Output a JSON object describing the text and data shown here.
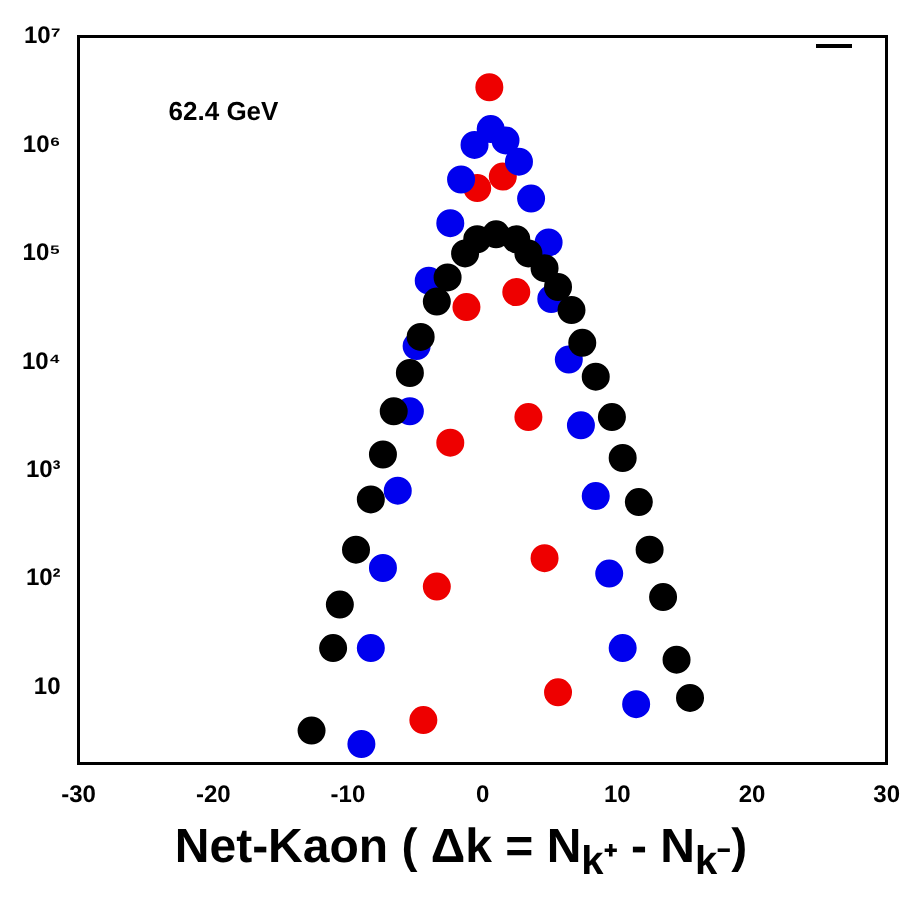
{
  "chart_data": {
    "type": "scatter",
    "xlabel": "Net-Kaon ( Δk = N$_{k⁺}$ - N$_{k⁻}$)",
    "annotations": [
      "62.4 GeV"
    ],
    "log": "y",
    "grid": false,
    "legend": false,
    "marker": "circle",
    "xlim": [
      -30,
      30
    ],
    "xticks": [
      -30,
      -20,
      -10,
      0,
      10,
      20,
      30
    ],
    "ylim": [
      2,
      10000000
    ],
    "yticks": [
      {
        "value": 10,
        "label": "10"
      },
      {
        "value": 100,
        "label": "10²"
      },
      {
        "value": 1000,
        "label": "10³"
      },
      {
        "value": 10000,
        "label": "10⁴"
      },
      {
        "value": 100000,
        "label": "10⁵"
      },
      {
        "value": 1000000,
        "label": "10⁶"
      },
      {
        "value": 10000000,
        "label": "10⁷"
      }
    ],
    "series": [
      {
        "color": "#000000",
        "x": [
          -12.7,
          -11.1,
          -10.6,
          -9.4,
          -8.3,
          -7.4,
          -6.6,
          -5.4,
          -4.6,
          -3.4,
          -2.6,
          -1.3,
          -0.4,
          1,
          2.5,
          3.4,
          4.6,
          5.6,
          6.6,
          7.4,
          8.4,
          9.6,
          10.4,
          11.6,
          12.4,
          13.4,
          14.4,
          15.4
        ],
        "values": [
          4,
          23,
          58,
          186,
          540,
          1400,
          3500,
          7900,
          17000,
          36000,
          60000,
          100000,
          135000,
          150000,
          135000,
          100000,
          73000,
          49000,
          30000,
          15000,
          7300,
          3100,
          1300,
          510,
          186,
          68,
          18,
          8
        ]
      },
      {
        "color": "#0000ee",
        "x": [
          -9,
          -8.3,
          -7.4,
          -6.3,
          -5.4,
          -4.9,
          -4,
          -2.4,
          -1.6,
          -0.6,
          0.6,
          1.7,
          2.7,
          3.6,
          4.9,
          5.1,
          6.4,
          7.3,
          8.4,
          9.4,
          10.4,
          11.4
        ],
        "values": [
          3,
          23,
          126,
          650,
          3500,
          14000,
          56000,
          190000,
          480000,
          1000000,
          1400000,
          1100000,
          700000,
          320000,
          126000,
          38000,
          10500,
          2600,
          580,
          112,
          23,
          7
        ]
      },
      {
        "color": "#ee0000",
        "x": [
          -4.4,
          -3.4,
          -2.4,
          -1.2,
          -0.4,
          0.5,
          1.5,
          2.5,
          3.4,
          4.6,
          5.6
        ],
        "values": [
          5,
          85,
          1800,
          32000,
          400000,
          3400000,
          510000,
          44000,
          3100,
          155,
          9
        ]
      }
    ]
  }
}
